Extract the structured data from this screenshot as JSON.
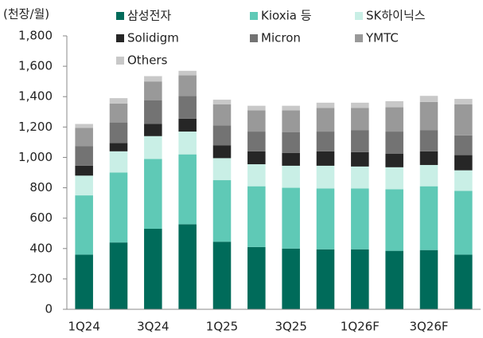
{
  "chart_data": {
    "type": "stacked_bar",
    "y_label": "(천장/월)",
    "categories": [
      "1Q24",
      null,
      "3Q24",
      null,
      "1Q25",
      null,
      "3Q25",
      null,
      "1Q26F",
      null,
      "3Q26F",
      null
    ],
    "series": [
      {
        "name": "삼성전자",
        "color": "#006b5a",
        "values": [
          360,
          440,
          530,
          560,
          445,
          410,
          400,
          395,
          395,
          385,
          390,
          360
        ]
      },
      {
        "name": "Kioxia 등",
        "color": "#5fc9b6",
        "values": [
          390,
          460,
          460,
          460,
          405,
          400,
          400,
          400,
          400,
          405,
          420,
          420
        ]
      },
      {
        "name": "SK하이닉스",
        "color": "#c9efe6",
        "values": [
          130,
          140,
          150,
          150,
          145,
          145,
          145,
          150,
          145,
          145,
          140,
          135
        ]
      },
      {
        "name": "Solidigm",
        "color": "#262626",
        "values": [
          65,
          55,
          80,
          85,
          85,
          85,
          85,
          95,
          95,
          90,
          90,
          100
        ]
      },
      {
        "name": "Micron",
        "color": "#737373",
        "values": [
          130,
          135,
          155,
          150,
          130,
          130,
          135,
          130,
          145,
          145,
          140,
          130
        ]
      },
      {
        "name": "YMTC",
        "color": "#999999",
        "values": [
          120,
          125,
          125,
          135,
          140,
          140,
          145,
          155,
          145,
          160,
          185,
          205
        ]
      },
      {
        "name": "Others",
        "color": "#c8c8c8",
        "values": [
          25,
          35,
          35,
          30,
          30,
          30,
          30,
          35,
          35,
          40,
          40,
          35
        ]
      }
    ],
    "ylim": [
      0,
      1800
    ],
    "yticks": [
      0,
      200,
      400,
      600,
      800,
      {
        "value": 1000,
        "label": "1,000"
      },
      {
        "value": 1200,
        "label": "1,200"
      },
      {
        "value": 1400,
        "label": "1,400"
      },
      {
        "value": 1600,
        "label": "1,600"
      },
      {
        "value": 1800,
        "label": "1,800"
      }
    ]
  }
}
